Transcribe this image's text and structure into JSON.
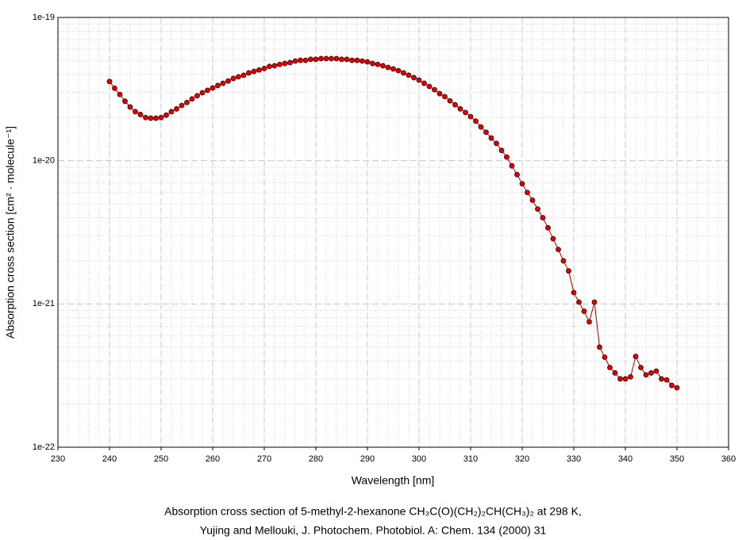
{
  "chart_data": {
    "type": "line",
    "title": "Absorption cross section of 5-methyl-2-hexanone CH₃C(O)(CH₂)₂CH(CH₃)₂ at 298 K,",
    "subtitle": "Yujing and Mellouki, J. Photochem. Photobiol. A: Chem. 134 (2000) 31",
    "x_label": "Wavelength [nm]",
    "y_label": "Absorption cross section [cm² · molecule⁻¹]",
    "x": [
      240,
      241,
      242,
      243,
      244,
      245,
      246,
      247,
      248,
      249,
      250,
      251,
      252,
      253,
      254,
      255,
      256,
      257,
      258,
      259,
      260,
      261,
      262,
      263,
      264,
      265,
      266,
      267,
      268,
      269,
      270,
      271,
      272,
      273,
      274,
      275,
      276,
      277,
      278,
      279,
      280,
      281,
      282,
      283,
      284,
      285,
      286,
      287,
      288,
      289,
      290,
      291,
      292,
      293,
      294,
      295,
      296,
      297,
      298,
      299,
      300,
      301,
      302,
      303,
      304,
      305,
      306,
      307,
      308,
      309,
      310,
      311,
      312,
      313,
      314,
      315,
      316,
      317,
      318,
      319,
      320,
      321,
      322,
      323,
      324,
      325,
      326,
      327,
      328,
      329,
      330,
      331,
      332,
      333,
      334,
      335,
      336,
      337,
      338,
      339,
      340,
      341,
      342,
      343,
      344,
      345,
      346,
      347,
      348,
      349,
      350
    ],
    "series": [
      {
        "name": "5-methyl-2-hexanone",
        "color": "#e00000",
        "line_color": "#b00000",
        "values": [
          3.57e-20,
          3.2e-20,
          2.9e-20,
          2.6e-20,
          2.37e-20,
          2.2e-20,
          2.1e-20,
          2e-20,
          1.98e-20,
          1.98e-20,
          2e-20,
          2.08e-20,
          2.2e-20,
          2.3e-20,
          2.43e-20,
          2.55e-20,
          2.7e-20,
          2.84e-20,
          2.98e-20,
          3.1e-20,
          3.22e-20,
          3.35e-20,
          3.47e-20,
          3.6e-20,
          3.75e-20,
          3.85e-20,
          3.95e-20,
          4.1e-20,
          4.2e-20,
          4.3e-20,
          4.4e-20,
          4.55e-20,
          4.6e-20,
          4.7e-20,
          4.77e-20,
          4.84e-20,
          4.96e-20,
          5.02e-20,
          5.02e-20,
          5.1e-20,
          5.1e-20,
          5.16e-20,
          5.16e-20,
          5.16e-20,
          5.16e-20,
          5.1e-20,
          5.1e-20,
          5.02e-20,
          5.02e-20,
          4.96e-20,
          4.9e-20,
          4.77e-20,
          4.7e-20,
          4.6e-20,
          4.48e-20,
          4.37e-20,
          4.25e-20,
          4.1e-20,
          3.95e-20,
          3.8e-20,
          3.65e-20,
          3.47e-20,
          3.3e-20,
          3.13e-20,
          2.94e-20,
          2.8e-20,
          2.62e-20,
          2.46e-20,
          2.3e-20,
          2.17e-20,
          2.03e-20,
          1.89e-20,
          1.72e-20,
          1.58e-20,
          1.44e-20,
          1.32e-20,
          1.18e-20,
          1.06e-20,
          9.2e-21,
          8e-21,
          6.9e-21,
          6e-21,
          5.3e-21,
          4.6e-21,
          4e-21,
          3.4e-21,
          2.85e-21,
          2.4e-21,
          2e-21,
          1.7e-21,
          1.2e-21,
          1.03e-21,
          8.9e-22,
          7.5e-22,
          1.03e-21,
          5e-22,
          4.25e-22,
          3.6e-22,
          3.3e-22,
          3e-22,
          3e-22,
          3.1e-22,
          4.3e-22,
          3.6e-22,
          3.2e-22,
          3.3e-22,
          3.4e-22,
          3e-22,
          2.95e-22,
          2.7e-22,
          2.6e-22
        ]
      }
    ],
    "xlim": [
      230,
      360
    ],
    "xticks": [
      230,
      240,
      250,
      260,
      270,
      280,
      290,
      300,
      310,
      320,
      330,
      340,
      350,
      360
    ],
    "ylim": [
      1e-22,
      1e-19
    ],
    "log_y": true,
    "yticks": [
      {
        "value": 1e-22,
        "label": "1e-22"
      },
      {
        "value": 1e-21,
        "label": "1e-21"
      },
      {
        "value": 1e-20,
        "label": "1e-20"
      },
      {
        "value": 1e-19,
        "label": "1e-19"
      }
    ],
    "grid": true
  }
}
